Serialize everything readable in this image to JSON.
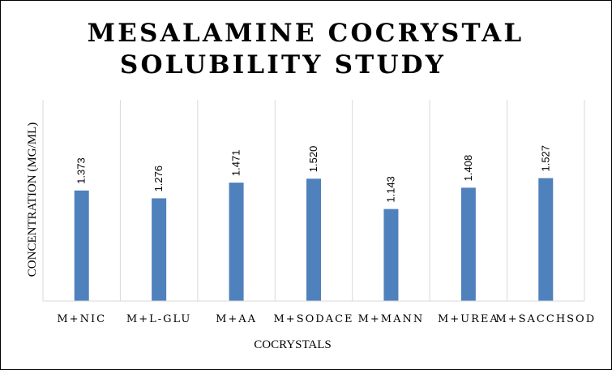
{
  "chart_data": {
    "type": "bar",
    "title_lines": [
      "MESALAMINE COCRYSTAL",
      "SOLUBILITY STUDY"
    ],
    "xlabel": "COCRYSTALS",
    "ylabel": "CONCENTRATION (MG/ML)",
    "categories": [
      "M+NIC",
      "M+L-GLU",
      "M+AA",
      "M+SODACE",
      "M+MANN",
      "M+UREA",
      "M+SACCHSOD"
    ],
    "values": [
      1.373,
      1.276,
      1.471,
      1.52,
      1.143,
      1.408,
      1.527
    ],
    "value_labels": [
      "1.373",
      "1.276",
      "1.471",
      "1.520",
      "1.143",
      "1.408",
      "1.527"
    ],
    "ylim": [
      0,
      2.5
    ],
    "grid": "vertical",
    "legend": "none",
    "bar_color": "#4f81bd",
    "grid_color": "#d9d9d9"
  }
}
